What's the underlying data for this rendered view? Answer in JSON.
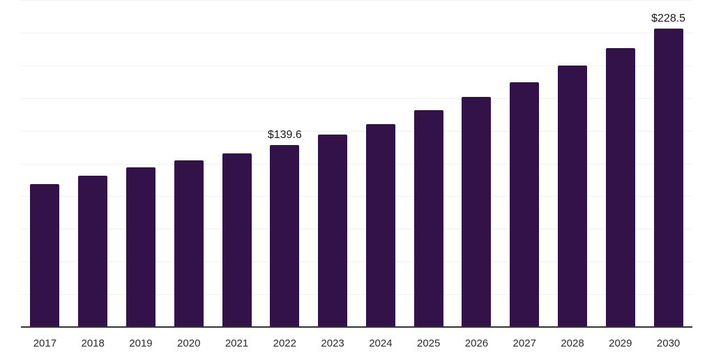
{
  "chart_data": {
    "type": "bar",
    "categories": [
      "2017",
      "2018",
      "2019",
      "2020",
      "2021",
      "2022",
      "2023",
      "2024",
      "2025",
      "2026",
      "2027",
      "2028",
      "2029",
      "2030"
    ],
    "values": [
      110.0,
      116.1,
      122.5,
      127.7,
      133.5,
      139.6,
      147.9,
      155.9,
      166.5,
      176.7,
      187.8,
      200.5,
      213.9,
      228.5
    ],
    "value_labels": [
      {
        "category": "2022",
        "text": "$139.6"
      },
      {
        "category": "2030",
        "text": "$228.5"
      }
    ],
    "ylim": [
      0,
      250
    ],
    "gridline_step": 25,
    "grid": "horizontal-only",
    "legend": "none",
    "y_axis_tick_labels_visible": false,
    "colors": {
      "bar": "#331249",
      "gridline": "#f1f1f1",
      "axis_line": "#333333",
      "tick_label": "#2b2b2b",
      "value_label": "#1a1a1a",
      "background": "#ffffff"
    }
  }
}
